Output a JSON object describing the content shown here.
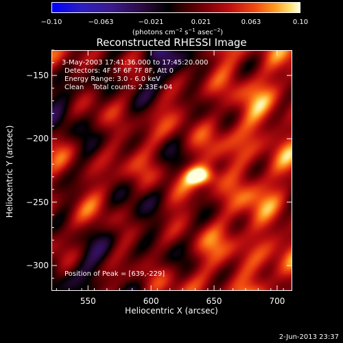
{
  "colorbar": {
    "ticks": [
      "−0.10",
      "−0.063",
      "−0.021",
      "0.021",
      "0.063",
      "0.10"
    ],
    "unit_prefix": "(photons cm",
    "unit_exp1": "−2",
    "unit_mid1": " s",
    "unit_exp2": "−1",
    "unit_mid2": " asec",
    "unit_exp3": "−2",
    "unit_suffix": ")"
  },
  "annotations": {
    "time_range": "3-May-2003 17:41:36.000 to 17:45:20.000",
    "detectors": "Detectors: 4F 5F 6F 7F 8F, Att 0",
    "energy": "Energy Range: 3.0 - 6.0 keV",
    "clean": "Clean    Total counts: 2.33E+04",
    "peak": "Position of Peak = [639,-229]"
  },
  "timestamp": "2-Jun-2013 23:37",
  "chart_data": {
    "type": "heatmap",
    "title": "Reconstructed RHESSI Image",
    "xlabel": "Heliocentric X (arcsec)",
    "ylabel": "Heliocentric Y (arcsec)",
    "xlim": [
      521,
      712
    ],
    "ylim": [
      -320,
      -130
    ],
    "xticks": [
      550,
      600,
      650,
      700
    ],
    "yticks": [
      -150,
      -200,
      -250,
      -300
    ],
    "xtick_labels": [
      "550",
      "600",
      "650",
      "700"
    ],
    "ytick_labels": [
      "−150",
      "−200",
      "−250",
      "−300"
    ],
    "colorbar_range": [
      -0.1,
      0.1
    ],
    "colormap": "blue-black-red-yellow-white",
    "peak_position": [
      639,
      -229
    ],
    "peak_value": 0.1
  }
}
